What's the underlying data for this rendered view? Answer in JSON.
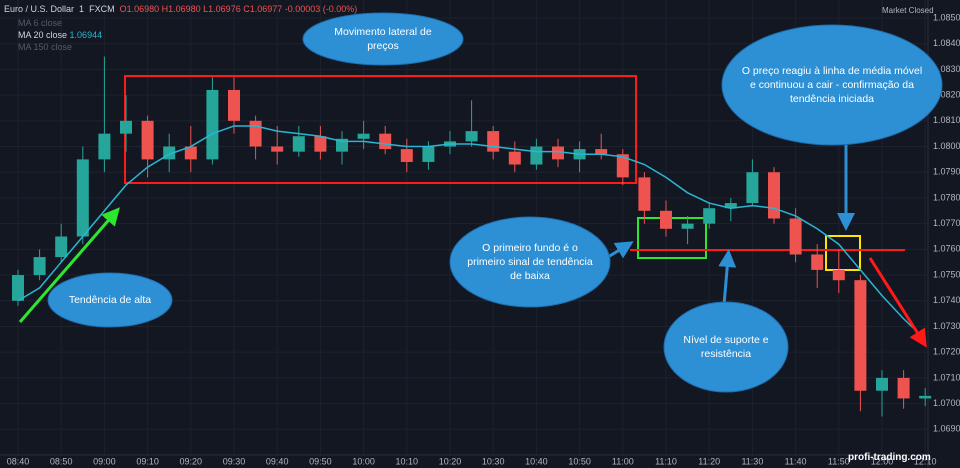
{
  "header": {
    "symbol": "Euro / U.S. Dollar",
    "interval": "1",
    "source": "FXCM",
    "ohlc": "O1.06980 H1.06980 L1.06976 C1.06977 -0.00003 (-0.00%)",
    "status": "Market Closed"
  },
  "indicators": [
    {
      "name": "MA 6 close"
    },
    {
      "name": "MA 20 close",
      "value": "1.06944"
    },
    {
      "name": "MA 150 close"
    }
  ],
  "annotations": [
    "Movimento lateral de preços",
    "Tendência de alta",
    "O primeiro fundo é o primeiro sinal de tendência de baixa",
    "Nível de suporte e resistência",
    "O preço reagiu à linha de média móvel e continuou a cair - confirmação da tendência iniciada"
  ],
  "watermark": "profi-trading.com",
  "chart_data": {
    "type": "candlestick",
    "up_color": "#26a69a",
    "down_color": "#ef5350",
    "grid": true,
    "categories": [
      "08:40",
      null,
      "08:50",
      null,
      "09:00",
      null,
      "09:10",
      null,
      "09:20",
      null,
      "09:30",
      null,
      "09:40",
      null,
      "09:50",
      null,
      "10:00",
      null,
      "10:10",
      null,
      "10:20",
      null,
      "10:30",
      null,
      "10:40",
      null,
      "10:50",
      null,
      "11:00",
      null,
      "11:10",
      null,
      "11:20",
      null,
      "11:30",
      null,
      "11:40",
      null,
      "11:50",
      null,
      "12:00",
      null,
      "12:10"
    ],
    "open": [
      1.074,
      1.075,
      1.0757,
      1.0765,
      1.0795,
      1.0805,
      1.081,
      1.0795,
      1.08,
      1.0795,
      1.0822,
      1.081,
      1.08,
      1.0798,
      1.0804,
      1.0798,
      1.0803,
      1.0805,
      1.0799,
      1.0794,
      1.08,
      1.0802,
      1.0806,
      1.0798,
      1.0793,
      1.08,
      1.0795,
      1.0799,
      1.0797,
      1.0788,
      1.0775,
      1.0768,
      1.077,
      1.0776,
      1.0778,
      1.079,
      1.0772,
      1.0758,
      1.0752,
      1.0748,
      1.0705,
      1.071,
      1.0702
    ],
    "high": [
      1.0752,
      1.076,
      1.077,
      1.08,
      1.0835,
      1.082,
      1.0812,
      1.0805,
      1.0808,
      1.0827,
      1.0827,
      1.0812,
      1.0808,
      1.0808,
      1.0808,
      1.0806,
      1.081,
      1.0808,
      1.0803,
      1.0802,
      1.0806,
      1.0818,
      1.0808,
      1.0802,
      1.0803,
      1.0803,
      1.0802,
      1.0805,
      1.0799,
      1.079,
      1.0779,
      1.0773,
      1.0778,
      1.078,
      1.0795,
      1.0792,
      1.0776,
      1.0762,
      1.076,
      1.075,
      1.0713,
      1.0713,
      1.0706
    ],
    "low": [
      1.0738,
      1.0748,
      1.0755,
      1.0762,
      1.079,
      1.0798,
      1.0788,
      1.079,
      1.079,
      1.0793,
      1.0805,
      1.0795,
      1.0793,
      1.0796,
      1.0795,
      1.0793,
      1.0799,
      1.0797,
      1.079,
      1.0791,
      1.0797,
      1.08,
      1.0795,
      1.079,
      1.0791,
      1.0792,
      1.079,
      1.0795,
      1.0785,
      1.077,
      1.0765,
      1.0762,
      1.0768,
      1.0771,
      1.0777,
      1.077,
      1.0755,
      1.0745,
      1.0743,
      1.0697,
      1.0695,
      1.0698,
      1.0699
    ],
    "close": [
      1.075,
      1.0757,
      1.0765,
      1.0795,
      1.0805,
      1.081,
      1.0795,
      1.08,
      1.0795,
      1.0822,
      1.081,
      1.08,
      1.0798,
      1.0804,
      1.0798,
      1.0803,
      1.0805,
      1.0799,
      1.0794,
      1.08,
      1.0802,
      1.0806,
      1.0798,
      1.0793,
      1.08,
      1.0795,
      1.0799,
      1.0797,
      1.0788,
      1.0775,
      1.0768,
      1.077,
      1.0776,
      1.0778,
      1.079,
      1.0772,
      1.0758,
      1.0752,
      1.0748,
      1.0705,
      1.071,
      1.0702,
      1.0703
    ],
    "ma": {
      "name": "MA 20 close",
      "color": "#29b6d3",
      "values": [
        1.074,
        1.0745,
        1.0755,
        1.0765,
        1.0775,
        1.0785,
        1.0792,
        1.0797,
        1.08,
        1.0805,
        1.0808,
        1.0808,
        1.0806,
        1.0805,
        1.0804,
        1.0802,
        1.0802,
        1.0801,
        1.08,
        1.08,
        1.0801,
        1.0801,
        1.08,
        1.0799,
        1.0798,
        1.0798,
        1.0797,
        1.0797,
        1.0796,
        1.0793,
        1.0788,
        1.0782,
        1.0778,
        1.0776,
        1.0777,
        1.0776,
        1.0773,
        1.0768,
        1.0762,
        1.0752,
        1.0742,
        1.0733,
        1.0725
      ]
    },
    "ylim": [
      1.068,
      1.0857
    ],
    "yticks": [
      {
        "value": 1.085,
        "label": "1.08500"
      },
      {
        "value": 1.084,
        "label": "1.08400"
      },
      {
        "value": 1.083,
        "label": "1.08300"
      },
      {
        "value": 1.082,
        "label": "1.08200"
      },
      {
        "value": 1.081,
        "label": "1.08100"
      },
      {
        "value": 1.08,
        "label": "1.08000"
      },
      {
        "value": 1.079,
        "label": "1.07900"
      },
      {
        "value": 1.078,
        "label": "1.07800"
      },
      {
        "value": 1.077,
        "label": "1.07700"
      },
      {
        "value": 1.076,
        "label": "1.07600"
      },
      {
        "value": 1.075,
        "label": "1.07500"
      },
      {
        "value": 1.074,
        "label": "1.07400"
      },
      {
        "value": 1.073,
        "label": "1.07300"
      },
      {
        "value": 1.072,
        "label": "1.07200"
      },
      {
        "value": 1.071,
        "label": "1.07100"
      },
      {
        "value": 1.07,
        "label": "1.07000"
      },
      {
        "value": 1.069,
        "label": "1.06900"
      }
    ]
  }
}
